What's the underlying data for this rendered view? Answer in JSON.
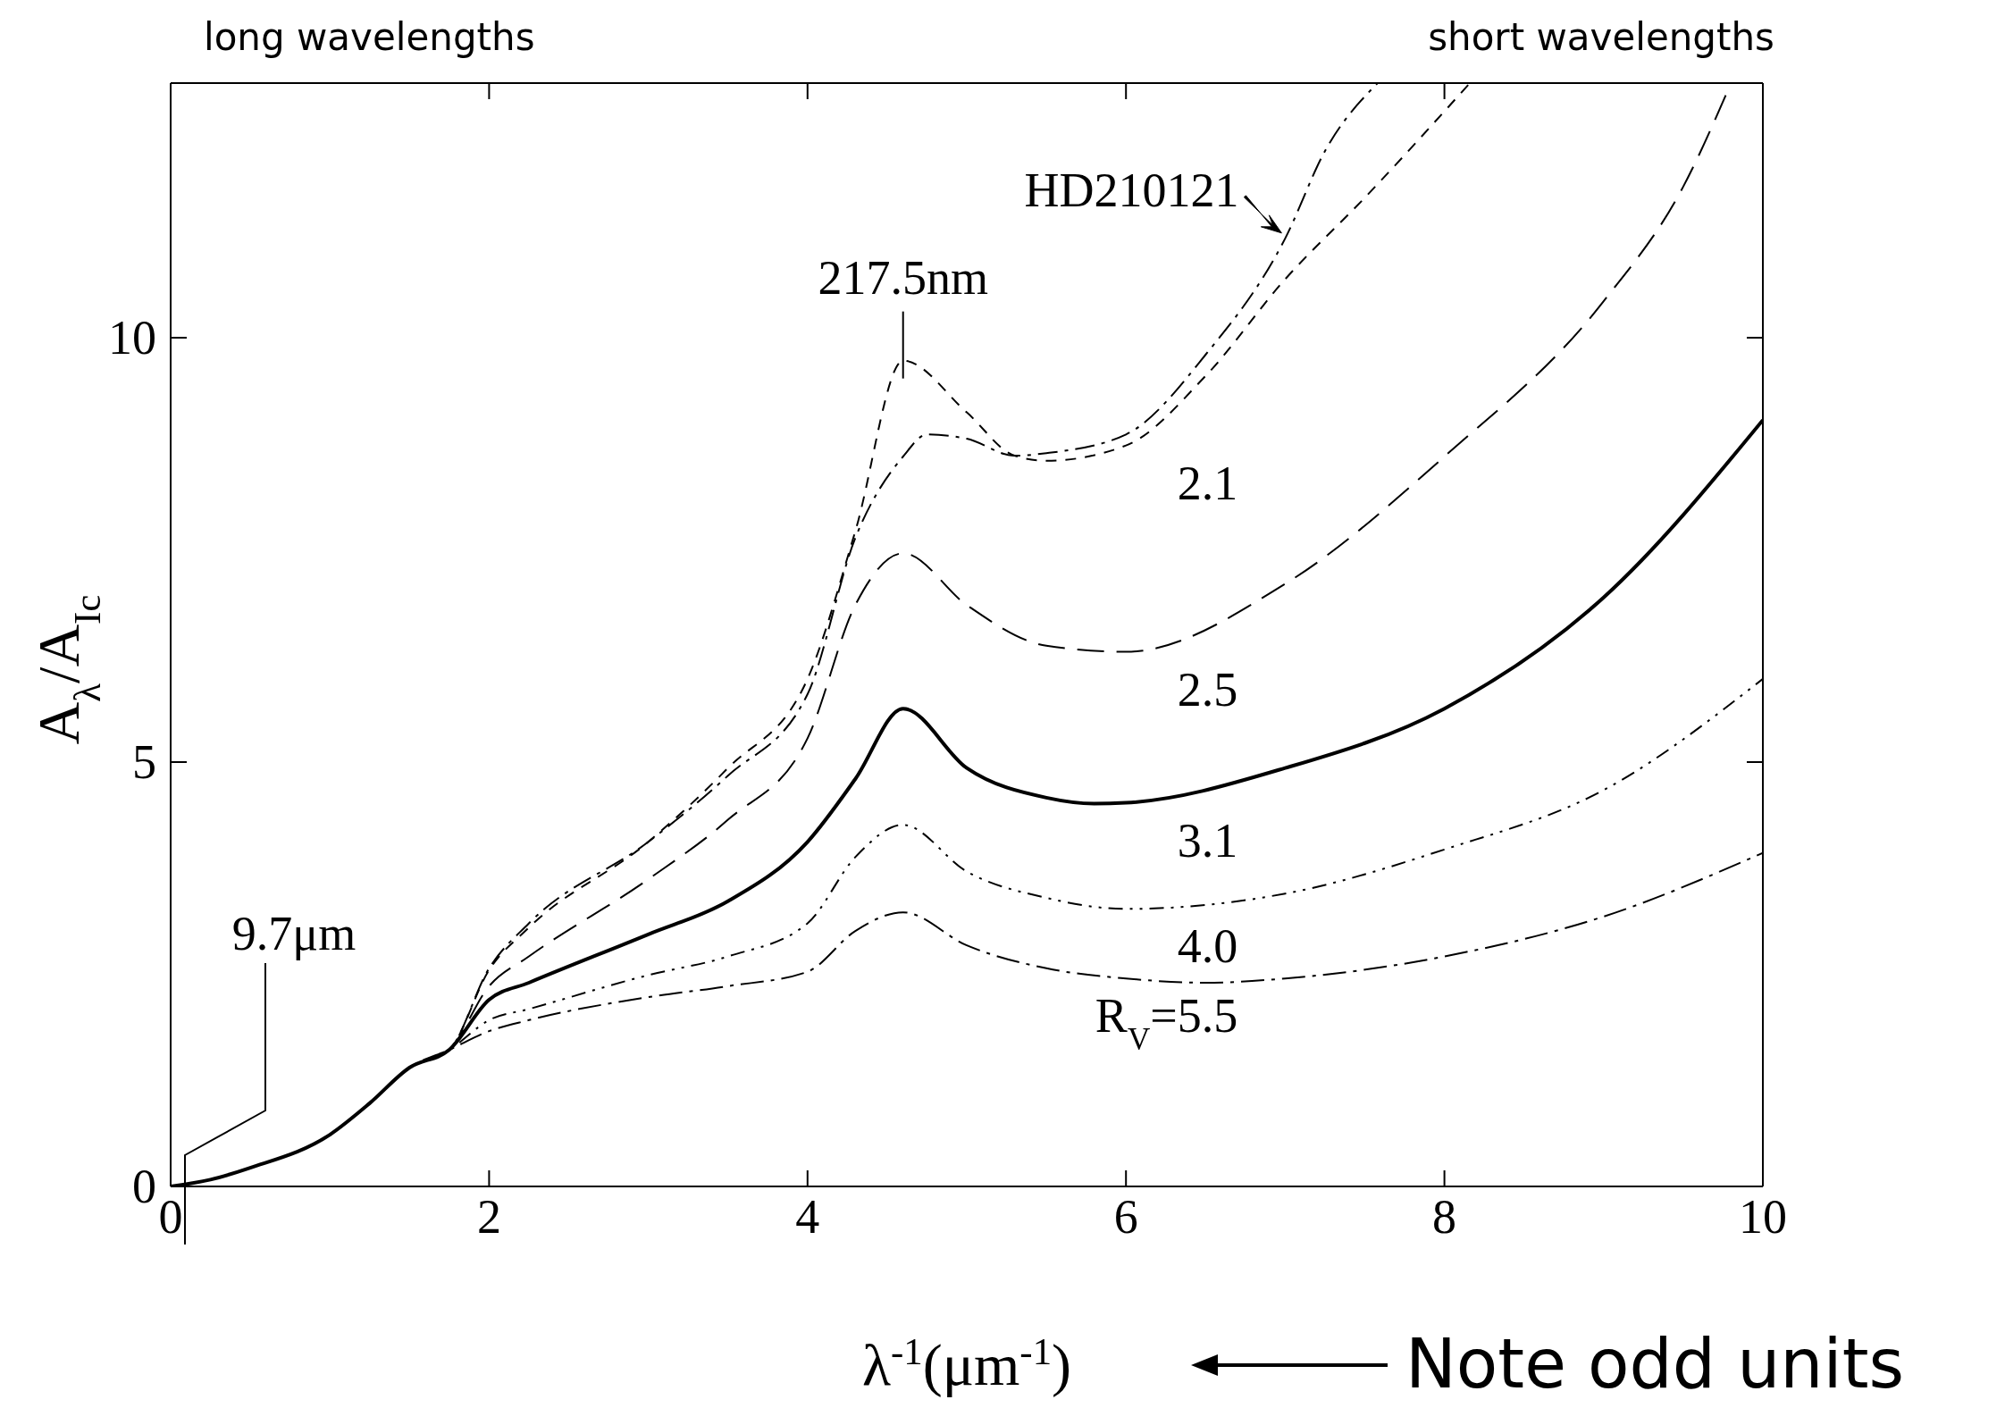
{
  "chart_data": {
    "type": "line",
    "xlabel": "λ$^{-1}$(μm$^{-1}$)",
    "ylabel": "A$_{λ}$/A$_{Ic}$",
    "xlim": [
      0,
      10
    ],
    "ylim": [
      0,
      13
    ],
    "xticks": [
      0,
      2,
      4,
      6,
      8,
      10
    ],
    "yticks": [
      0,
      5,
      10
    ],
    "grid": false,
    "marker": "none",
    "annotations": [
      "long wavelengths",
      "short wavelengths",
      "Note odd units",
      "9.7μm",
      {
        "text": "217.5nm",
        "x": 4.6,
        "y": 9.73
      }
    ],
    "series": [
      {
        "name": "HD210121",
        "color": "#000000",
        "line_style": "dashed",
        "x": [
          0,
          0.25,
          0.5,
          1,
          1.25,
          1.5,
          1.75,
          2,
          2.25,
          3,
          3.5,
          4,
          4.3,
          4.6,
          4.75,
          5,
          5.3,
          5.5,
          6,
          6.5,
          7,
          7.25,
          7.58
        ],
        "values": [
          0,
          0.08,
          0.22,
          0.61,
          0.98,
          1.4,
          1.61,
          2.57,
          3.1,
          4.06,
          4.84,
          5.8,
          7.64,
          8.6,
          8.86,
          8.81,
          8.61,
          8.64,
          8.86,
          9.8,
          11.17,
          12.2,
          13
        ]
      },
      {
        "name": "2.1",
        "color": "#000000",
        "line_style": "dashed",
        "x": [
          0,
          0.25,
          0.5,
          1,
          1.25,
          1.5,
          1.75,
          2,
          2.25,
          3,
          3.5,
          4,
          4.3,
          4.6,
          5,
          5.3,
          5.5,
          6,
          6.5,
          7,
          7.5,
          8.16
        ],
        "values": [
          0,
          0.08,
          0.22,
          0.61,
          0.98,
          1.4,
          1.61,
          2.55,
          3.05,
          4.06,
          4.93,
          5.98,
          7.72,
          9.73,
          9.12,
          8.61,
          8.55,
          8.73,
          9.55,
          10.69,
          11.65,
          13
        ]
      },
      {
        "name": "2.5",
        "color": "#000000",
        "line_style": "dashed",
        "x": [
          0,
          0.25,
          0.5,
          1,
          1.25,
          1.5,
          1.75,
          2,
          2.25,
          3,
          3.5,
          4,
          4.3,
          4.6,
          5,
          5.5,
          6,
          7,
          8,
          9,
          9.5,
          9.8
        ],
        "values": [
          0,
          0.08,
          0.22,
          0.61,
          0.98,
          1.4,
          1.61,
          2.36,
          2.71,
          3.62,
          4.32,
          5.28,
          6.85,
          7.46,
          6.85,
          6.37,
          6.3,
          7.1,
          8.6,
          10.43,
          11.78,
          13
        ]
      },
      {
        "name": "3.1",
        "color": "#000000",
        "line_style": "solid",
        "x": [
          0,
          0.25,
          0.5,
          1,
          1.25,
          1.5,
          1.75,
          2,
          2.25,
          3,
          3.5,
          4,
          4.3,
          4.6,
          5,
          5.5,
          5.8,
          6,
          7,
          8,
          9,
          10
        ],
        "values": [
          0,
          0.08,
          0.22,
          0.61,
          0.98,
          1.4,
          1.61,
          2.2,
          2.4,
          2.97,
          3.36,
          4.06,
          4.8,
          5.63,
          4.93,
          4.58,
          4.51,
          4.52,
          4.93,
          5.63,
          6.94,
          9.03
        ]
      },
      {
        "name": "4.0",
        "color": "#000000",
        "line_style": "dashed",
        "x": [
          0,
          0.25,
          0.5,
          1,
          1.25,
          1.5,
          1.75,
          2,
          2.25,
          3,
          3.5,
          4,
          4.3,
          4.6,
          5,
          5.5,
          6,
          7,
          8,
          9,
          10
        ],
        "values": [
          0,
          0.08,
          0.22,
          0.61,
          0.98,
          1.4,
          1.61,
          1.96,
          2.09,
          2.49,
          2.71,
          3.1,
          3.88,
          4.26,
          3.71,
          3.4,
          3.27,
          3.45,
          3.97,
          4.67,
          5.98
        ]
      },
      {
        "name": "R$_{V}$=5.5",
        "color": "#000000",
        "line_style": "dashed",
        "x": [
          0,
          0.25,
          0.5,
          1,
          1.25,
          1.5,
          1.75,
          2,
          2.25,
          3,
          3.5,
          4,
          4.3,
          4.6,
          5,
          5.5,
          6,
          6.5,
          7,
          8,
          9,
          10
        ],
        "values": [
          0,
          0.08,
          0.22,
          0.61,
          0.98,
          1.4,
          1.61,
          1.83,
          1.96,
          2.23,
          2.36,
          2.53,
          3.01,
          3.23,
          2.84,
          2.57,
          2.45,
          2.4,
          2.45,
          2.71,
          3.18,
          3.93
        ]
      }
    ]
  }
}
